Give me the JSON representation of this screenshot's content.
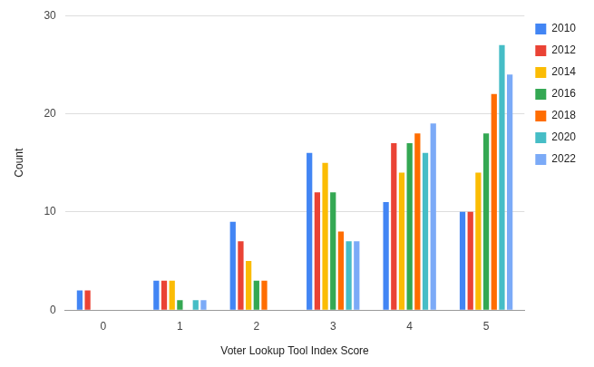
{
  "chart_data": {
    "type": "bar",
    "x_label": "Voter Lookup Tool Index Score",
    "y_label": "Count",
    "categories": [
      "0",
      "1",
      "2",
      "3",
      "4",
      "5"
    ],
    "series": [
      {
        "name": "2010",
        "color": "#4285f4",
        "values": [
          2,
          3,
          9,
          16,
          11,
          10
        ]
      },
      {
        "name": "2012",
        "color": "#ea4335",
        "values": [
          2,
          3,
          7,
          12,
          17,
          10
        ]
      },
      {
        "name": "2014",
        "color": "#fbbc04",
        "values": [
          0,
          3,
          5,
          15,
          14,
          14
        ]
      },
      {
        "name": "2016",
        "color": "#34a853",
        "values": [
          0,
          1,
          3,
          12,
          17,
          18
        ]
      },
      {
        "name": "2018",
        "color": "#ff6d01",
        "values": [
          0,
          0,
          3,
          8,
          18,
          22
        ]
      },
      {
        "name": "2020",
        "color": "#46bdc6",
        "values": [
          0,
          1,
          0,
          7,
          16,
          27
        ]
      },
      {
        "name": "2022",
        "color": "#7baaf7",
        "values": [
          0,
          1,
          0,
          7,
          19,
          24
        ]
      }
    ],
    "ylim": [
      0,
      30
    ],
    "yticks": [
      0,
      10,
      20,
      30
    ],
    "grid": true,
    "legend": "right"
  }
}
